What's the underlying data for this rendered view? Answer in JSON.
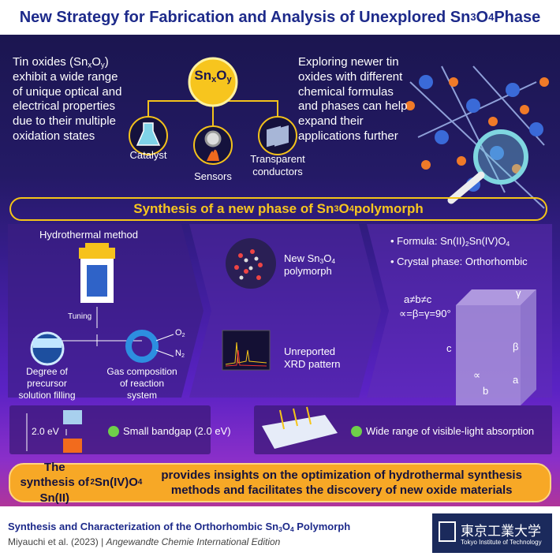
{
  "title": [
    "New Strategy for Fabrication and Analysis of Unexplored Sn",
    "3",
    "O",
    "4",
    " Phase"
  ],
  "intro": {
    "left_text": [
      "Tin oxides (Sn",
      "x",
      "O",
      "y",
      ") exhibit a wide range of unique optical and electrical properties due to their multiple oxidation states"
    ],
    "center_label": [
      "Sn",
      "x",
      "O",
      "y"
    ],
    "applications": [
      "Catalyst",
      "Sensors",
      "Transparent conductors"
    ],
    "right_text": "Exploring newer tin oxides with different chemical formulas and phases can help expand their applications further"
  },
  "synthesis": {
    "heading": [
      "Synthesis of a new phase of Sn",
      "3",
      "O",
      "4",
      " polymorph"
    ],
    "method": {
      "title": "Hydrothermal method",
      "tuning": "Tuning",
      "factors": [
        "Degree of precursor solution filling",
        "Gas composition of reaction system"
      ],
      "gases": [
        [
          "O",
          "2"
        ],
        [
          "N",
          "2"
        ]
      ]
    },
    "results": [
      [
        "New Sn",
        "3",
        "O",
        "4",
        " polymorph"
      ],
      "Unreported XRD pattern"
    ],
    "structure": {
      "formula": [
        "Formula: Sn(II)",
        "2",
        "Sn(IV)O",
        "4"
      ],
      "phase": "Crystal phase: Orthorhombic",
      "lattice": "a≠b≠c",
      "angles": "∝=β=γ=90°",
      "edges": [
        "a",
        "b",
        "c"
      ],
      "angle_symbols": [
        "β",
        "γ",
        "∝"
      ]
    }
  },
  "properties": {
    "bandgap_label": "2.0 eV",
    "items": [
      "Small bandgap (2.0 eV)",
      "Wide range of visible-light absorption"
    ]
  },
  "conclusion": [
    "The synthesis of Sn(II)",
    "2",
    "Sn(IV)O",
    "4",
    " provides insights on the optimization of hydrothermal synthesis methods and facilitates the discovery of new oxide materials"
  ],
  "footer": {
    "paper_title": [
      "Synthesis and Characterization of the Orthorhombic Sn",
      "3",
      "O",
      "4",
      " Polymorph"
    ],
    "authors": "Miyauchi et al. (2023)",
    "separator": "|",
    "journal": "Angewandte Chemie International Edition",
    "institution": "東京工業大学",
    "institution_en": "Tokyo Institute of Technology"
  }
}
